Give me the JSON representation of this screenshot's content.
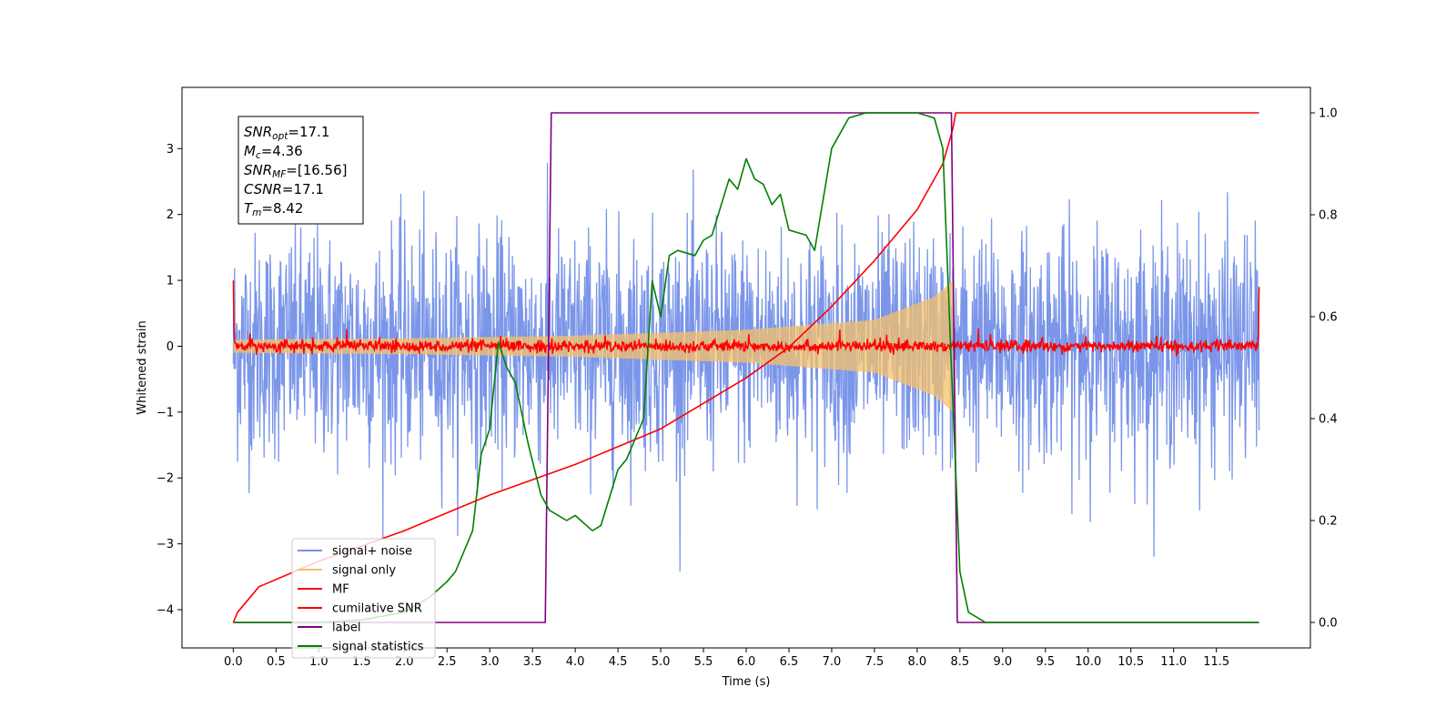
{
  "chart_data": {
    "type": "line",
    "xlabel": "Time (s)",
    "ylabel": "Whitened strain",
    "xlim": [
      -0.6,
      12.6
    ],
    "ylim": [
      -4.58,
      3.93
    ],
    "ylim_right": [
      -0.05,
      1.05
    ],
    "x_ticks": [
      "0.0",
      "0.5",
      "1.0",
      "1.5",
      "2.0",
      "2.5",
      "3.0",
      "3.5",
      "4.0",
      "4.5",
      "5.0",
      "5.5",
      "6.0",
      "6.5",
      "7.0",
      "7.5",
      "8.0",
      "8.5",
      "9.0",
      "9.5",
      "10.0",
      "10.5",
      "11.0",
      "11.5"
    ],
    "y_ticks": [
      "3",
      "2",
      "1",
      "0",
      "−1",
      "−2",
      "−3",
      "−4"
    ],
    "y_ticks_right": [
      "1.0",
      "0.8",
      "0.6",
      "0.4",
      "0.2",
      "0.0"
    ],
    "grid": false,
    "legend_position": "lower-left",
    "annotation": {
      "lines": [
        {
          "sym": "SNR",
          "sub": "opt",
          "val": "=17.1"
        },
        {
          "sym": "M",
          "sub": "c",
          "val": "=4.36"
        },
        {
          "sym": "SNR",
          "sub": "MF",
          "val": "=[16.56]"
        },
        {
          "sym": "CSNR",
          "sub": "",
          "val": "=17.1"
        },
        {
          "sym": "T",
          "sub": "m",
          "val": "=8.42"
        }
      ]
    },
    "series": [
      {
        "name": "signal+ noise",
        "color": "#7490e8",
        "axis": "left",
        "x_range": [
          0.0,
          12.0
        ],
        "noise_sigma": 0.85,
        "note": "whitened data, spikes up to ~3.6"
      },
      {
        "name": "signal only",
        "color": "#f5c06a",
        "axis": "left",
        "x_range": [
          0.0,
          8.42
        ],
        "envelope": [
          [
            0.0,
            0.1
          ],
          [
            2.0,
            0.12
          ],
          [
            4.0,
            0.16
          ],
          [
            6.0,
            0.25
          ],
          [
            7.5,
            0.4
          ],
          [
            8.2,
            0.75
          ],
          [
            8.42,
            1.0
          ]
        ]
      },
      {
        "name": "MF",
        "color": "#ff0000",
        "axis": "left",
        "x_range": [
          0.0,
          12.0
        ],
        "baseline": 0.0,
        "edges": [
          [
            0.0,
            1.0
          ],
          [
            12.0,
            0.9
          ]
        ]
      },
      {
        "name": "cumilative SNR",
        "color": "#ff0000",
        "axis": "right",
        "x": [
          0.0,
          0.05,
          0.3,
          1.0,
          2.0,
          3.0,
          4.0,
          5.0,
          6.0,
          6.5,
          7.0,
          7.5,
          8.0,
          8.3,
          8.42,
          8.45,
          12.0
        ],
        "y": [
          0.0,
          0.02,
          0.07,
          0.12,
          0.18,
          0.25,
          0.31,
          0.38,
          0.48,
          0.54,
          0.62,
          0.71,
          0.81,
          0.9,
          0.97,
          1.0,
          1.0
        ]
      },
      {
        "name": "label",
        "color": "#800080",
        "axis": "right",
        "x": [
          0.0,
          3.65,
          3.72,
          8.4,
          8.47,
          12.0
        ],
        "y": [
          0.0,
          0.0,
          1.0,
          1.0,
          0.0,
          0.0
        ]
      },
      {
        "name": "signal statistics",
        "color": "#008000",
        "axis": "right",
        "x": [
          0.0,
          1.0,
          1.5,
          2.0,
          2.3,
          2.5,
          2.6,
          2.8,
          2.9,
          3.0,
          3.1,
          3.2,
          3.3,
          3.45,
          3.6,
          3.7,
          3.9,
          4.0,
          4.2,
          4.3,
          4.5,
          4.6,
          4.8,
          4.9,
          5.0,
          5.1,
          5.2,
          5.4,
          5.5,
          5.6,
          5.8,
          5.9,
          6.0,
          6.1,
          6.2,
          6.3,
          6.4,
          6.5,
          6.7,
          6.8,
          7.0,
          7.2,
          7.4,
          7.6,
          7.8,
          8.0,
          8.2,
          8.3,
          8.4,
          8.5,
          8.6,
          8.8,
          12.0
        ],
        "y": [
          0.0,
          0.0,
          0.005,
          0.02,
          0.05,
          0.08,
          0.1,
          0.18,
          0.33,
          0.38,
          0.55,
          0.5,
          0.47,
          0.35,
          0.25,
          0.22,
          0.2,
          0.21,
          0.18,
          0.19,
          0.3,
          0.32,
          0.4,
          0.67,
          0.6,
          0.72,
          0.73,
          0.72,
          0.75,
          0.76,
          0.87,
          0.85,
          0.91,
          0.87,
          0.86,
          0.82,
          0.84,
          0.77,
          0.76,
          0.73,
          0.93,
          0.99,
          1.0,
          1.0,
          1.0,
          1.0,
          0.99,
          0.93,
          0.5,
          0.1,
          0.02,
          0.0,
          0.0
        ]
      }
    ]
  }
}
